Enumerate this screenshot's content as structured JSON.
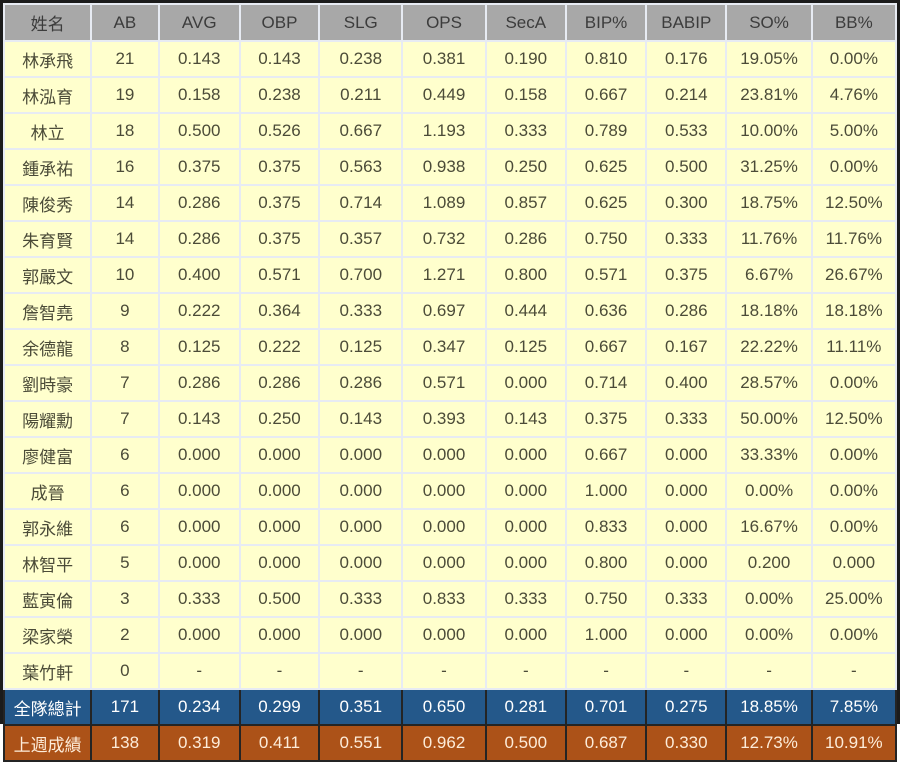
{
  "table": {
    "title": "batting-stats-table",
    "columns": [
      "姓名",
      "AB",
      "AVG",
      "OBP",
      "SLG",
      "OPS",
      "SecA",
      "BIP%",
      "BABIP",
      "SO%",
      "BB%"
    ],
    "rows": [
      [
        "林承飛",
        "21",
        "0.143",
        "0.143",
        "0.238",
        "0.381",
        "0.190",
        "0.810",
        "0.176",
        "19.05%",
        "0.00%"
      ],
      [
        "林泓育",
        "19",
        "0.158",
        "0.238",
        "0.211",
        "0.449",
        "0.158",
        "0.667",
        "0.214",
        "23.81%",
        "4.76%"
      ],
      [
        "林立",
        "18",
        "0.500",
        "0.526",
        "0.667",
        "1.193",
        "0.333",
        "0.789",
        "0.533",
        "10.00%",
        "5.00%"
      ],
      [
        "鍾承祐",
        "16",
        "0.375",
        "0.375",
        "0.563",
        "0.938",
        "0.250",
        "0.625",
        "0.500",
        "31.25%",
        "0.00%"
      ],
      [
        "陳俊秀",
        "14",
        "0.286",
        "0.375",
        "0.714",
        "1.089",
        "0.857",
        "0.625",
        "0.300",
        "18.75%",
        "12.50%"
      ],
      [
        "朱育賢",
        "14",
        "0.286",
        "0.375",
        "0.357",
        "0.732",
        "0.286",
        "0.750",
        "0.333",
        "11.76%",
        "11.76%"
      ],
      [
        "郭嚴文",
        "10",
        "0.400",
        "0.571",
        "0.700",
        "1.271",
        "0.800",
        "0.571",
        "0.375",
        "6.67%",
        "26.67%"
      ],
      [
        "詹智堯",
        "9",
        "0.222",
        "0.364",
        "0.333",
        "0.697",
        "0.444",
        "0.636",
        "0.286",
        "18.18%",
        "18.18%"
      ],
      [
        "余德龍",
        "8",
        "0.125",
        "0.222",
        "0.125",
        "0.347",
        "0.125",
        "0.667",
        "0.167",
        "22.22%",
        "11.11%"
      ],
      [
        "劉時豪",
        "7",
        "0.286",
        "0.286",
        "0.286",
        "0.571",
        "0.000",
        "0.714",
        "0.400",
        "28.57%",
        "0.00%"
      ],
      [
        "陽耀勳",
        "7",
        "0.143",
        "0.250",
        "0.143",
        "0.393",
        "0.143",
        "0.375",
        "0.333",
        "50.00%",
        "12.50%"
      ],
      [
        "廖健富",
        "6",
        "0.000",
        "0.000",
        "0.000",
        "0.000",
        "0.000",
        "0.667",
        "0.000",
        "33.33%",
        "0.00%"
      ],
      [
        "成晉",
        "6",
        "0.000",
        "0.000",
        "0.000",
        "0.000",
        "0.000",
        "1.000",
        "0.000",
        "0.00%",
        "0.00%"
      ],
      [
        "郭永維",
        "6",
        "0.000",
        "0.000",
        "0.000",
        "0.000",
        "0.000",
        "0.833",
        "0.000",
        "16.67%",
        "0.00%"
      ],
      [
        "林智平",
        "5",
        "0.000",
        "0.000",
        "0.000",
        "0.000",
        "0.000",
        "0.800",
        "0.000",
        "0.200",
        "0.000"
      ],
      [
        "藍寅倫",
        "3",
        "0.333",
        "0.500",
        "0.333",
        "0.833",
        "0.333",
        "0.750",
        "0.333",
        "0.00%",
        "25.00%"
      ],
      [
        "梁家榮",
        "2",
        "0.000",
        "0.000",
        "0.000",
        "0.000",
        "0.000",
        "1.000",
        "0.000",
        "0.00%",
        "0.00%"
      ],
      [
        "葉竹軒",
        "0",
        "-",
        "-",
        "-",
        "-",
        "-",
        "-",
        "-",
        "-",
        "-"
      ]
    ],
    "summary_rows": [
      {
        "label": "全隊總計",
        "style": "team-total",
        "values": [
          "171",
          "0.234",
          "0.299",
          "0.351",
          "0.650",
          "0.281",
          "0.701",
          "0.275",
          "18.85%",
          "7.85%"
        ]
      },
      {
        "label": "上週成績",
        "style": "last-week",
        "values": [
          "138",
          "0.319",
          "0.411",
          "0.551",
          "0.962",
          "0.500",
          "0.687",
          "0.330",
          "12.73%",
          "10.91%"
        ]
      }
    ],
    "colors": {
      "header_bg": "#a8a8a8",
      "header_text": "#3c3c3c",
      "row_bg": "#ffffcd",
      "row_text": "#4b4b38",
      "gridline": "#e7ebf3",
      "frame": "#1b1b1b",
      "team_total_bg": "#24588a",
      "team_total_text": "#ffffff",
      "last_week_bg": "#ac5218",
      "last_week_text": "#fdecd9"
    }
  },
  "chart_data": {
    "type": "table",
    "title": "Batting statistics by player (batting average, on-base, slugging, strikeout and walk rates)",
    "columns": [
      "姓名",
      "AB",
      "AVG",
      "OBP",
      "SLG",
      "OPS",
      "SecA",
      "BIP%",
      "BABIP",
      "SO%",
      "BB%"
    ],
    "rows": [
      [
        "林承飛",
        21,
        0.143,
        0.143,
        0.238,
        0.381,
        0.19,
        0.81,
        0.176,
        "19.05%",
        "0.00%"
      ],
      [
        "林泓育",
        19,
        0.158,
        0.238,
        0.211,
        0.449,
        0.158,
        0.667,
        0.214,
        "23.81%",
        "4.76%"
      ],
      [
        "林立",
        18,
        0.5,
        0.526,
        0.667,
        1.193,
        0.333,
        0.789,
        0.533,
        "10.00%",
        "5.00%"
      ],
      [
        "鍾承祐",
        16,
        0.375,
        0.375,
        0.563,
        0.938,
        0.25,
        0.625,
        0.5,
        "31.25%",
        "0.00%"
      ],
      [
        "陳俊秀",
        14,
        0.286,
        0.375,
        0.714,
        1.089,
        0.857,
        0.625,
        0.3,
        "18.75%",
        "12.50%"
      ],
      [
        "朱育賢",
        14,
        0.286,
        0.375,
        0.357,
        0.732,
        0.286,
        0.75,
        0.333,
        "11.76%",
        "11.76%"
      ],
      [
        "郭嚴文",
        10,
        0.4,
        0.571,
        0.7,
        1.271,
        0.8,
        0.571,
        0.375,
        "6.67%",
        "26.67%"
      ],
      [
        "詹智堯",
        9,
        0.222,
        0.364,
        0.333,
        0.697,
        0.444,
        0.636,
        0.286,
        "18.18%",
        "18.18%"
      ],
      [
        "余德龍",
        8,
        0.125,
        0.222,
        0.125,
        0.347,
        0.125,
        0.667,
        0.167,
        "22.22%",
        "11.11%"
      ],
      [
        "劉時豪",
        7,
        0.286,
        0.286,
        0.286,
        0.571,
        0.0,
        0.714,
        0.4,
        "28.57%",
        "0.00%"
      ],
      [
        "陽耀勳",
        7,
        0.143,
        0.25,
        0.143,
        0.393,
        0.143,
        0.375,
        0.333,
        "50.00%",
        "12.50%"
      ],
      [
        "廖健富",
        6,
        0.0,
        0.0,
        0.0,
        0.0,
        0.0,
        0.667,
        0.0,
        "33.33%",
        "0.00%"
      ],
      [
        "成晉",
        6,
        0.0,
        0.0,
        0.0,
        0.0,
        0.0,
        1.0,
        0.0,
        "0.00%",
        "0.00%"
      ],
      [
        "郭永維",
        6,
        0.0,
        0.0,
        0.0,
        0.0,
        0.0,
        0.833,
        0.0,
        "16.67%",
        "0.00%"
      ],
      [
        "林智平",
        5,
        0.0,
        0.0,
        0.0,
        0.0,
        0.0,
        0.8,
        0.0,
        "0.200",
        "0.000"
      ],
      [
        "藍寅倫",
        3,
        0.333,
        0.5,
        0.333,
        0.833,
        0.333,
        0.75,
        0.333,
        "0.00%",
        "25.00%"
      ],
      [
        "梁家榮",
        2,
        0.0,
        0.0,
        0.0,
        0.0,
        0.0,
        1.0,
        0.0,
        "0.00%",
        "0.00%"
      ],
      [
        "葉竹軒",
        0,
        "-",
        "-",
        "-",
        "-",
        "-",
        "-",
        "-",
        "-",
        "-"
      ]
    ],
    "totals": {
      "全隊總計": [
        171,
        0.234,
        0.299,
        0.351,
        0.65,
        0.281,
        0.701,
        0.275,
        "18.85%",
        "7.85%"
      ],
      "上週成績": [
        138,
        0.319,
        0.411,
        0.551,
        0.962,
        0.5,
        0.687,
        0.33,
        "12.73%",
        "10.91%"
      ]
    },
    "layout_hints": {
      "grid": true,
      "header_style": "gray",
      "body_style": "pale-yellow",
      "summary_row_styles": [
        "dark-blue",
        "burnt-orange"
      ]
    }
  }
}
